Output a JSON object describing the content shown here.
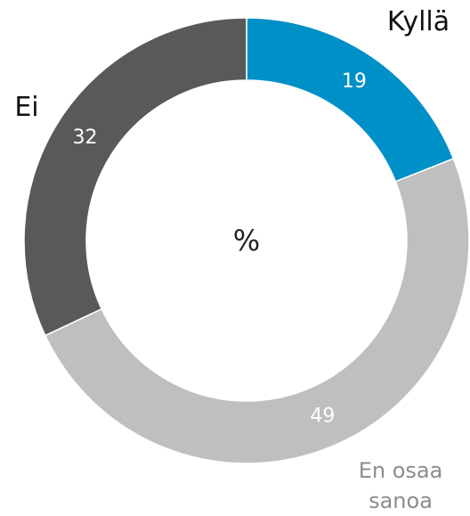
{
  "chart_data": {
    "type": "donut",
    "center_label": "%",
    "categories": [
      "Kyllä",
      "En osaa sanoa",
      "Ei"
    ],
    "values": [
      19,
      49,
      32
    ],
    "colors": [
      "#0090c8",
      "#bfbfbf",
      "#595959"
    ]
  }
}
